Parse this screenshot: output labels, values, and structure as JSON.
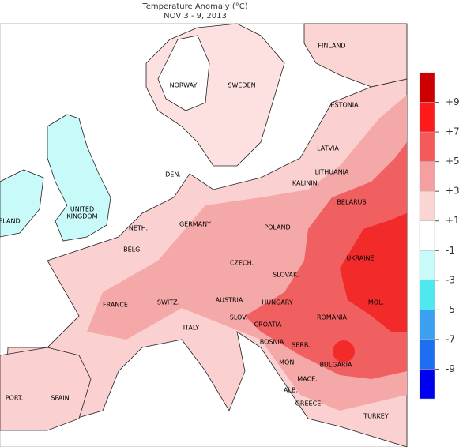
{
  "title": "Temperature Anomaly (°C)",
  "subtitle": "NOV 3 - 9, 2013",
  "countries": [
    "FINLAND",
    "NORWAY",
    "SWEDEN",
    "ESTONIA",
    "LATVIA",
    "LITHUANIA",
    "DEN.",
    "KALININ.",
    "BELARUS",
    "UNITED",
    "KINGDOM",
    "ELAND",
    "NETH.",
    "GERMANY",
    "POLAND",
    "BELG.",
    "CZECH.",
    "SLOVAK.",
    "UKRAINE",
    "FRANCE",
    "SWITZ.",
    "AUSTRIA",
    "HUNGARY",
    "MOL.",
    "SLOV.",
    "ROMANIA",
    "CROATIA",
    "ITALY",
    "BOSNIA",
    "SERB.",
    "MON.",
    "BULGARIA",
    "MACE.",
    "ALB.",
    "PORT.",
    "SPAIN",
    "GREECE",
    "TURKEY"
  ],
  "legend": {
    "colors": [
      "#cc0000",
      "#ff1a1a",
      "#f55a5a",
      "#f5a0a0",
      "#fbd4d4",
      "#ffffff",
      "#c8fafa",
      "#50e8f0",
      "#3ca0f0",
      "#1e6ef0",
      "#0000f0"
    ],
    "ticks": [
      {
        "value": 9,
        "label": "+9"
      },
      {
        "value": 7,
        "label": "+7"
      },
      {
        "value": 5,
        "label": "+5"
      },
      {
        "value": 3,
        "label": "+3"
      },
      {
        "value": 1,
        "label": "+1"
      },
      -1,
      -3,
      -5,
      -7,
      -9
    ]
  }
}
